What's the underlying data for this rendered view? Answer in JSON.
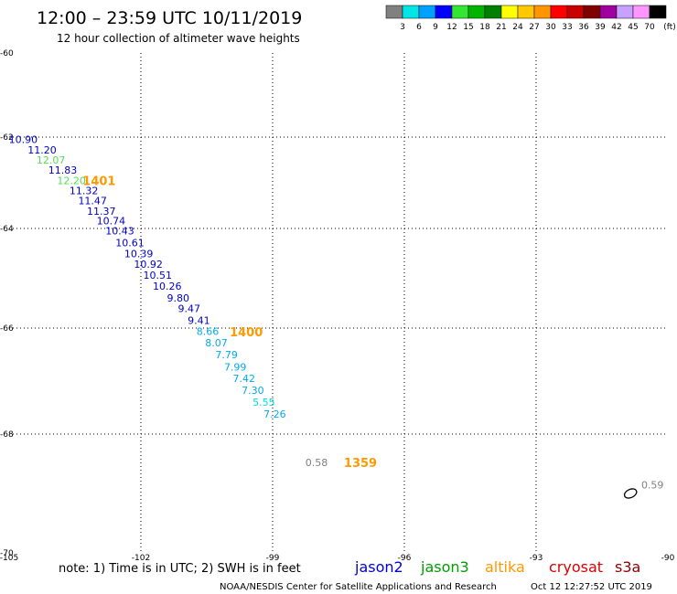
{
  "header": {
    "title": "12:00 – 23:59 UTC 10/11/2019",
    "subtitle": "12 hour collection of altimeter wave heights"
  },
  "colorbar": {
    "colors": [
      "#808080",
      "#00e5e5",
      "#00a0ff",
      "#0000ff",
      "#32e632",
      "#00b400",
      "#008000",
      "#ffff00",
      "#ffc800",
      "#ff9600",
      "#ff0000",
      "#c80000",
      "#800000",
      "#a000a0",
      "#c8a0ff",
      "#ff96ff",
      "#000000"
    ],
    "labels": [
      "3",
      "6",
      "9",
      "12",
      "15",
      "18",
      "21",
      "24",
      "27",
      "30",
      "33",
      "36",
      "39",
      "42",
      "45",
      "70"
    ],
    "unit": "(ft)"
  },
  "footer": {
    "note": "note: 1) Time is in UTC; 2) SWH is in feet",
    "credit": "NOAA/NESDIS Center for Satellite Applications and Research",
    "timestamp": "Oct 12 12:27:52 UTC 2019"
  },
  "legend": [
    {
      "name": "jason2",
      "color": "#0000dd"
    },
    {
      "name": "jason3",
      "color": "#00a000"
    },
    {
      "name": "altika",
      "color": "#ff9900"
    },
    {
      "name": "cryosat",
      "color": "#dd0000"
    },
    {
      "name": "s3a",
      "color": "#900000"
    }
  ],
  "chart_data": {
    "type": "scatter",
    "xlim": [
      -105,
      -90
    ],
    "ylim": [
      -70,
      -60
    ],
    "xticks": [
      "-105",
      "-102",
      "-99",
      "-96",
      "-93",
      "-90"
    ],
    "yticks": [
      "-60",
      "-62",
      "-64",
      "-66",
      "-68",
      "-70"
    ],
    "grid": true,
    "points": [
      {
        "lon": -104.68,
        "lat": -62.05,
        "value": "10.90",
        "color": "#0000cc"
      },
      {
        "lon": -104.25,
        "lat": -62.28,
        "value": "11.20",
        "color": "#0000cc"
      },
      {
        "lon": -104.05,
        "lat": -62.5,
        "value": "12.07",
        "color": "#55dd55"
      },
      {
        "lon": -103.78,
        "lat": -62.72,
        "value": "11.83",
        "color": "#0000cc"
      },
      {
        "lon": -103.58,
        "lat": -62.95,
        "value": "12.20",
        "color": "#55dd55"
      },
      {
        "lon": -103.3,
        "lat": -63.17,
        "value": "11.32",
        "color": "#0000cc"
      },
      {
        "lon": -103.1,
        "lat": -63.39,
        "value": "11.47",
        "color": "#0000cc"
      },
      {
        "lon": -102.9,
        "lat": -63.62,
        "value": "11.37",
        "color": "#0000cc"
      },
      {
        "lon": -102.68,
        "lat": -63.83,
        "value": "10.74",
        "color": "#0000cc"
      },
      {
        "lon": -102.48,
        "lat": -64.05,
        "value": "10.43",
        "color": "#0000cc"
      },
      {
        "lon": -102.25,
        "lat": -64.28,
        "value": "10.61",
        "color": "#0000cc"
      },
      {
        "lon": -102.05,
        "lat": -64.5,
        "value": "10.39",
        "color": "#0000cc"
      },
      {
        "lon": -101.83,
        "lat": -64.72,
        "value": "10.92",
        "color": "#0000cc"
      },
      {
        "lon": -101.62,
        "lat": -64.94,
        "value": "10.51",
        "color": "#0000cc"
      },
      {
        "lon": -101.4,
        "lat": -65.16,
        "value": "10.26",
        "color": "#0000cc"
      },
      {
        "lon": -101.15,
        "lat": -65.39,
        "value": "9.80",
        "color": "#0000cc"
      },
      {
        "lon": -100.9,
        "lat": -65.61,
        "value": "9.47",
        "color": "#0000cc"
      },
      {
        "lon": -100.68,
        "lat": -65.84,
        "value": "9.41",
        "color": "#0000cc"
      },
      {
        "lon": -100.48,
        "lat": -66.06,
        "value": "8.66",
        "color": "#00aaee"
      },
      {
        "lon": -100.28,
        "lat": -66.28,
        "value": "8.07",
        "color": "#00aaee"
      },
      {
        "lon": -100.05,
        "lat": -66.5,
        "value": "7.79",
        "color": "#00aaee"
      },
      {
        "lon": -99.85,
        "lat": -66.73,
        "value": "7.99",
        "color": "#00aaee"
      },
      {
        "lon": -99.65,
        "lat": -66.95,
        "value": "7.42",
        "color": "#00aaee"
      },
      {
        "lon": -99.45,
        "lat": -67.17,
        "value": "7.30",
        "color": "#00aaee"
      },
      {
        "lon": -99.2,
        "lat": -67.4,
        "value": "5.55",
        "color": "#00dddd"
      },
      {
        "lon": -98.95,
        "lat": -67.62,
        "value": "7.26",
        "color": "#00aaee"
      },
      {
        "lon": -98.0,
        "lat": -68.48,
        "value": "0.58",
        "color": "#808080"
      },
      {
        "lon": -90.35,
        "lat": -68.85,
        "value": "0.59",
        "color": "#808080"
      }
    ],
    "time_labels": [
      {
        "lon": -102.95,
        "lat": -62.95,
        "text": "1401",
        "color": "#ff9900"
      },
      {
        "lon": -99.6,
        "lat": -66.07,
        "text": "1400",
        "color": "#ff9900"
      },
      {
        "lon": -97.0,
        "lat": -68.48,
        "text": "1359",
        "color": "#ff9900"
      }
    ],
    "contour": {
      "lon": -90.85,
      "lat": -69.0
    }
  }
}
